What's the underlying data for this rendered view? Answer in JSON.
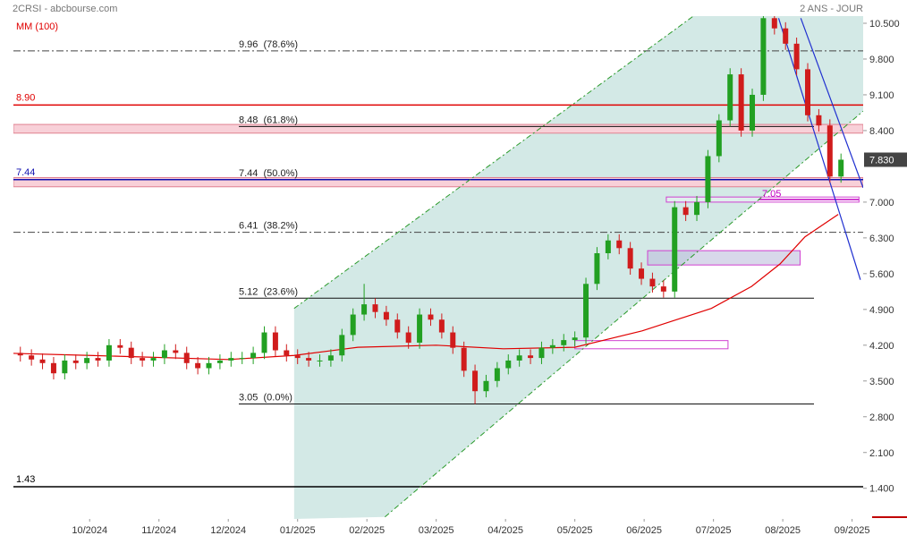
{
  "chart_data": {
    "type": "candlestick",
    "title": "2CRSI - abcbourse.com",
    "subtitle": "2 ANS - JOUR",
    "xlim": [
      -1.1,
      11.16
    ],
    "ylim": [
      0.8,
      10.64
    ],
    "xticks": [
      {
        "value": 0,
        "label": "10/2024"
      },
      {
        "value": 1,
        "label": "11/2024"
      },
      {
        "value": 2,
        "label": "12/2024"
      },
      {
        "value": 3,
        "label": "01/2025"
      },
      {
        "value": 4,
        "label": "02/2025"
      },
      {
        "value": 5,
        "label": "03/2025"
      },
      {
        "value": 6,
        "label": "04/2025"
      },
      {
        "value": 7,
        "label": "05/2025"
      },
      {
        "value": 8,
        "label": "06/2025"
      },
      {
        "value": 9,
        "label": "07/2025"
      },
      {
        "value": 10,
        "label": "08/2025"
      },
      {
        "value": 11,
        "label": "09/2025"
      }
    ],
    "yticks": [
      {
        "value": 10.5,
        "label": "10.500"
      },
      {
        "value": 9.8,
        "label": "9.800"
      },
      {
        "value": 9.1,
        "label": "9.100"
      },
      {
        "value": 8.4,
        "label": "8.400"
      },
      {
        "value": 7,
        "label": "7.000"
      },
      {
        "value": 6.3,
        "label": "6.300"
      },
      {
        "value": 5.6,
        "label": "5.600"
      },
      {
        "value": 4.9,
        "label": "4.900"
      },
      {
        "value": 4.2,
        "label": "4.200"
      },
      {
        "value": 3.5,
        "label": "3.500"
      },
      {
        "value": 2.8,
        "label": "2.800"
      },
      {
        "value": 2.1,
        "label": "2.100"
      },
      {
        "value": 1.4,
        "label": "1.400"
      }
    ],
    "last_price": {
      "value": 7.83,
      "label": "7.830"
    },
    "up_color": "#22a022",
    "down_color": "#d01c1c",
    "candles": {
      "x": [
        -1,
        -0.84,
        -0.68,
        -0.52,
        -0.36,
        -0.2,
        -0.04,
        0.12,
        0.28,
        0.44,
        0.6,
        0.76,
        0.92,
        1.08,
        1.24,
        1.4,
        1.56,
        1.72,
        1.88,
        2.04,
        2.2,
        2.36,
        2.52,
        2.68,
        2.84,
        3,
        3.16,
        3.32,
        3.48,
        3.64,
        3.8,
        3.96,
        4.12,
        4.28,
        4.44,
        4.6,
        4.76,
        4.92,
        5.08,
        5.24,
        5.4,
        5.56,
        5.72,
        5.88,
        6.04,
        6.2,
        6.36,
        6.52,
        6.68,
        6.84,
        7,
        7.16,
        7.32,
        7.48,
        7.64,
        7.8,
        7.96,
        8.12,
        8.28,
        8.44,
        8.6,
        8.76,
        8.92,
        9.08,
        9.24,
        9.4,
        9.56,
        9.72,
        9.88,
        10.04,
        10.2,
        10.36,
        10.52,
        10.68,
        10.84
      ],
      "open": [
        4.05,
        4.0,
        3.92,
        3.85,
        3.65,
        3.9,
        3.85,
        3.95,
        3.9,
        4.2,
        4.15,
        3.95,
        3.9,
        3.95,
        4.1,
        4.05,
        3.85,
        3.75,
        3.85,
        3.9,
        3.95,
        3.95,
        4.05,
        4.45,
        4.1,
        4.0,
        3.95,
        3.9,
        3.9,
        4.0,
        4.4,
        4.8,
        5.0,
        4.85,
        4.7,
        4.45,
        4.25,
        4.8,
        4.7,
        4.45,
        4.15,
        3.7,
        3.3,
        3.5,
        3.75,
        3.9,
        4.0,
        3.95,
        4.15,
        4.2,
        4.3,
        4.35,
        5.4,
        6.0,
        6.25,
        6.1,
        5.7,
        5.5,
        5.35,
        5.25,
        6.9,
        6.75,
        7.0,
        7.9,
        8.6,
        9.5,
        8.4,
        9.1,
        10.6,
        10.4,
        10.1,
        9.6,
        8.7,
        8.5,
        7.5
      ],
      "high": [
        4.17,
        4.12,
        4.04,
        3.97,
        4.02,
        4.02,
        4.07,
        4.07,
        4.32,
        4.32,
        4.27,
        4.07,
        4.07,
        4.22,
        4.22,
        4.17,
        3.97,
        3.97,
        4.02,
        4.07,
        4.07,
        4.17,
        4.57,
        4.57,
        4.22,
        4.12,
        4.07,
        4.02,
        4.12,
        4.52,
        4.92,
        5.4,
        5.12,
        4.97,
        4.82,
        4.57,
        4.92,
        4.92,
        4.82,
        4.57,
        4.27,
        3.82,
        3.62,
        3.87,
        4.02,
        4.12,
        4.12,
        4.27,
        4.32,
        4.42,
        4.47,
        5.52,
        6.12,
        6.37,
        6.37,
        6.22,
        5.82,
        5.62,
        5.47,
        7.02,
        7.02,
        7.12,
        8.02,
        8.72,
        9.62,
        9.62,
        9.22,
        10.65,
        10.65,
        10.52,
        10.22,
        9.72,
        8.82,
        8.62,
        7.95
      ],
      "low": [
        3.88,
        3.8,
        3.73,
        3.53,
        3.53,
        3.73,
        3.73,
        3.78,
        3.78,
        4.03,
        3.83,
        3.78,
        3.78,
        3.83,
        3.93,
        3.73,
        3.63,
        3.63,
        3.73,
        3.78,
        3.83,
        3.83,
        3.93,
        3.98,
        3.88,
        3.83,
        3.78,
        3.78,
        3.78,
        3.88,
        4.28,
        4.68,
        4.73,
        4.58,
        4.33,
        4.13,
        4.13,
        4.58,
        4.33,
        4.03,
        3.58,
        3.05,
        3.18,
        3.38,
        3.63,
        3.78,
        3.83,
        3.83,
        4.03,
        4.08,
        4.18,
        4.23,
        5.28,
        5.88,
        5.98,
        5.58,
        5.38,
        5.23,
        5.13,
        5.13,
        6.63,
        6.63,
        6.88,
        7.78,
        8.48,
        8.28,
        8.28,
        8.98,
        10.28,
        9.98,
        9.48,
        8.58,
        8.38,
        7.38,
        7.38
      ],
      "close": [
        4.0,
        3.92,
        3.85,
        3.65,
        3.9,
        3.85,
        3.95,
        3.9,
        4.2,
        4.15,
        3.95,
        3.9,
        3.95,
        4.1,
        4.05,
        3.85,
        3.75,
        3.85,
        3.9,
        3.95,
        3.95,
        4.05,
        4.45,
        4.1,
        4.0,
        3.95,
        3.9,
        3.9,
        4.0,
        4.4,
        4.8,
        5.0,
        4.85,
        4.7,
        4.45,
        4.25,
        4.8,
        4.7,
        4.45,
        4.15,
        3.7,
        3.3,
        3.5,
        3.75,
        3.9,
        4.0,
        3.95,
        4.15,
        4.2,
        4.3,
        4.35,
        5.4,
        6.0,
        6.25,
        6.1,
        5.7,
        5.5,
        5.35,
        5.25,
        6.9,
        6.75,
        7.0,
        7.9,
        8.6,
        9.5,
        8.4,
        9.1,
        10.6,
        10.4,
        10.1,
        9.6,
        8.7,
        8.5,
        7.5,
        7.83
      ]
    },
    "moving_average": {
      "name": "MM (100)",
      "color": "#e00000",
      "x": [
        -1.1,
        0,
        2,
        2.95,
        3.87,
        5,
        5.97,
        7,
        7.97,
        8.97,
        9.55,
        9.96,
        10.32,
        10.8
      ],
      "values": [
        4.04,
        4.0,
        3.92,
        4.0,
        4.16,
        4.2,
        4.13,
        4.16,
        4.48,
        4.92,
        5.35,
        5.79,
        6.32,
        6.76
      ]
    },
    "fib_levels": [
      {
        "value": 9.96,
        "label": "9.96  (78.6%)",
        "style": "dashdot"
      },
      {
        "value": 8.48,
        "label": "8.48  (61.8%)",
        "style": "solid"
      },
      {
        "value": 7.44,
        "label": "7.44  (50.0%)",
        "style": "solid"
      },
      {
        "value": 6.41,
        "label": "6.41  (38.2%)",
        "style": "dashdot"
      },
      {
        "value": 5.12,
        "label": "5.12  (23.6%)",
        "style": "solid"
      },
      {
        "value": 3.05,
        "label": "3.05  (0.0%)",
        "style": "solid"
      }
    ],
    "levels": [
      {
        "value": 8.9,
        "label": "8.90",
        "color": "#e00000"
      },
      {
        "value": 7.44,
        "label": "7.44",
        "color": "#1010b0"
      },
      {
        "value": 1.43,
        "label": "1.43",
        "color": "#000000"
      }
    ],
    "marker_level": {
      "value": 7.05,
      "label": "7.05",
      "color": "#c000c0"
    },
    "zones": [
      {
        "low": 8.35,
        "high": 8.52
      },
      {
        "low": 7.3,
        "high": 7.48
      }
    ],
    "boxes": [
      {
        "x": [
          8.32,
          11.1
        ],
        "y": [
          7.0,
          7.1
        ]
      },
      {
        "x": [
          8.05,
          10.25
        ],
        "y": [
          5.77,
          6.05
        ]
      },
      {
        "x": [
          7.0,
          9.21
        ],
        "y": [
          4.13,
          4.29
        ]
      }
    ],
    "channel": {
      "color": "#2a9a2a",
      "upper": {
        "x": [
          2.95,
          8.71
        ],
        "y": [
          4.92,
          10.64
        ]
      },
      "lower": {
        "x": [
          4.26,
          11.16
        ],
        "y": [
          0.84,
          8.78
        ]
      }
    },
    "trendlines": [
      {
        "color": "#2030d0",
        "x": [
          9.94,
          11.12
        ],
        "y": [
          10.6,
          5.48
        ]
      },
      {
        "color": "#2030d0",
        "x": [
          10.26,
          11.16
        ],
        "y": [
          10.6,
          7.28
        ]
      }
    ]
  }
}
